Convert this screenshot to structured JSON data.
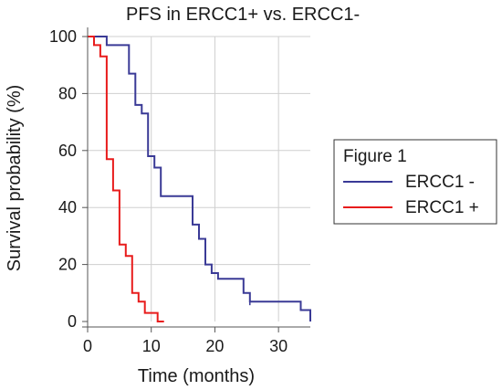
{
  "chart_data": {
    "type": "line",
    "title": "PFS in ERCC1+ vs. ERCC1-",
    "xlabel": "Time (months)",
    "ylabel": "Survival probability (%)",
    "xlim": [
      0,
      35
    ],
    "ylim": [
      0,
      100
    ],
    "xticks": [
      "0",
      "10",
      "20",
      "30"
    ],
    "xtick_values": [
      0,
      10,
      20,
      30
    ],
    "yticks": [
      "0",
      "20",
      "40",
      "60",
      "80",
      "100"
    ],
    "ytick_values": [
      0,
      20,
      40,
      60,
      80,
      100
    ],
    "grid": true,
    "legend": {
      "title": "Figure 1",
      "position": "right"
    },
    "series": [
      {
        "name": "ERCC1 -",
        "color": "#3a3a96",
        "x": [
          0,
          3,
          5,
          6.5,
          7.5,
          8.5,
          9.5,
          10.5,
          11.5,
          16.5,
          17.5,
          18.5,
          19.5,
          20.5,
          24.5,
          25.5,
          33.5,
          35
        ],
        "y": [
          100,
          97,
          97,
          87,
          76,
          73,
          58,
          54,
          44,
          34,
          29,
          20,
          17,
          15,
          10,
          7,
          4,
          0
        ]
      },
      {
        "name": "ERCC1 +",
        "color": "#e81c1c",
        "x": [
          0,
          1,
          2,
          3,
          4,
          5,
          6,
          7,
          8,
          9,
          11,
          12
        ],
        "y": [
          100,
          97,
          93,
          57,
          46,
          27,
          23,
          10,
          7,
          3,
          0,
          0
        ]
      }
    ]
  }
}
